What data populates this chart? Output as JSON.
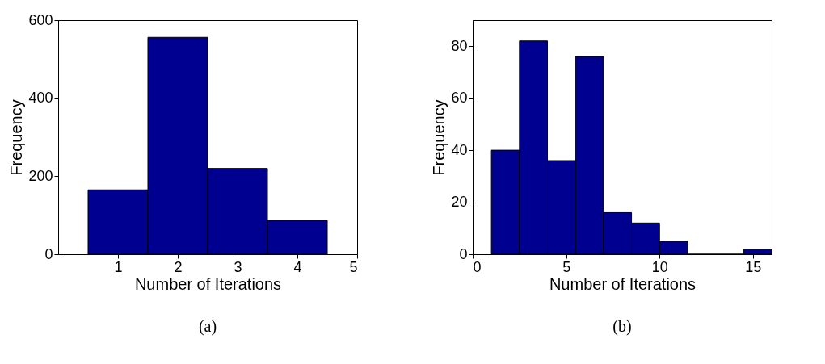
{
  "chart_data": [
    {
      "type": "histogram",
      "bins": [
        0.5,
        1.5,
        2.5,
        3.5,
        4.5
      ],
      "values": [
        165,
        556,
        220,
        87
      ],
      "color": "#000090",
      "xlabel": "Number of Iterations",
      "ylabel": "Frequency",
      "xlim": [
        0,
        5
      ],
      "xticks": [
        1,
        2,
        3,
        4,
        5
      ],
      "ylim": [
        0,
        600
      ],
      "yticks": [
        0,
        200,
        400,
        600
      ],
      "grid": false,
      "annotations": [
        "(a)"
      ]
    },
    {
      "type": "histogram",
      "bins": [
        1,
        2.5,
        4,
        5.5,
        7,
        8.5,
        10,
        11.5,
        13,
        14.5,
        16
      ],
      "values": [
        40,
        82,
        36,
        76,
        16,
        12,
        5,
        0,
        0,
        2
      ],
      "color": "#000090",
      "xlabel": "Number of Iterations",
      "ylabel": "Frequency",
      "xlim": [
        0,
        16
      ],
      "xticks": [
        0,
        5,
        10,
        15
      ],
      "ylim": [
        0,
        90
      ],
      "yticks": [
        0,
        20,
        40,
        60,
        80
      ],
      "grid": false,
      "annotations": [
        "(b)"
      ]
    }
  ]
}
